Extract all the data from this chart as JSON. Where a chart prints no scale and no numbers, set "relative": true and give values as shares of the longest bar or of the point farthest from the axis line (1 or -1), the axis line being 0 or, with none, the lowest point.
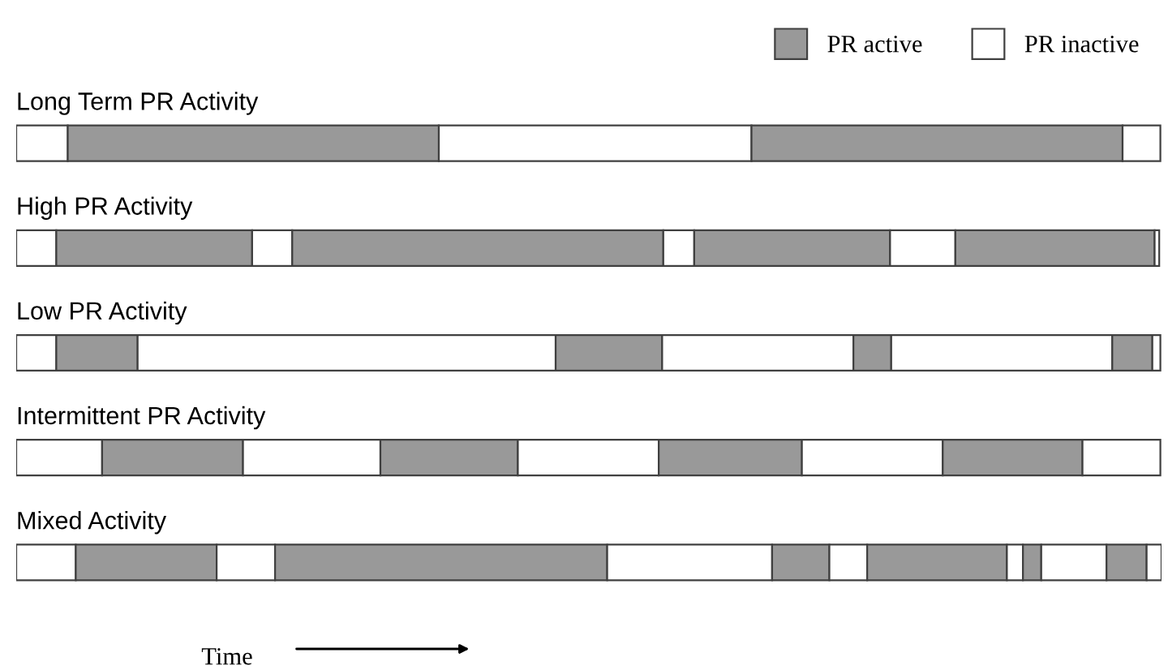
{
  "chart_data": {
    "type": "bar",
    "orientation": "horizontal",
    "stacked": true,
    "relative": true,
    "xlabel": "Time",
    "legend": "top right",
    "categories": [
      "Long Term PR Activity",
      "High PR Activity",
      "Low PR Activity",
      "Intermittent PR Activity",
      "Mixed Activity"
    ],
    "series": [
      {
        "name": "PR inactive",
        "color": "#ffffff",
        "values": [
          0.045,
          0.035,
          0.035,
          0.075,
          0.052
        ]
      },
      {
        "name": "PR active",
        "color": "#999999",
        "values": [
          0.324,
          0.171,
          0.071,
          0.123,
          0.123
        ]
      },
      {
        "color": "#ffffff",
        "values": [
          0.273,
          0.035,
          0.365,
          0.12,
          0.051
        ]
      },
      {
        "color": "#999999",
        "values": [
          0.324,
          0.324,
          0.093,
          0.12,
          0.29
        ]
      },
      {
        "color": "#ffffff",
        "values": [
          0.033,
          0.027,
          0.167,
          0.123,
          0.144
        ]
      },
      {
        "color": "#999999",
        "values": [
          null,
          0.171,
          0.033,
          0.125,
          0.05
        ]
      },
      {
        "color": "#ffffff",
        "values": [
          null,
          0.057,
          0.193,
          0.123,
          0.033
        ]
      },
      {
        "color": "#999999",
        "values": [
          null,
          0.174,
          0.035,
          0.122,
          0.122
        ]
      },
      {
        "color": "#ffffff",
        "values": [
          null,
          0.004,
          0.007,
          0.068,
          0.014
        ]
      },
      {
        "color": "#999999",
        "values": [
          null,
          null,
          null,
          null,
          0.016
        ]
      },
      {
        "color": "#ffffff",
        "values": [
          null,
          null,
          null,
          null,
          0.057
        ]
      },
      {
        "color": "#999999",
        "values": [
          null,
          null,
          null,
          null,
          0.035
        ]
      },
      {
        "color": "#ffffff",
        "values": [
          null,
          null,
          null,
          null,
          0.013
        ]
      }
    ]
  }
}
